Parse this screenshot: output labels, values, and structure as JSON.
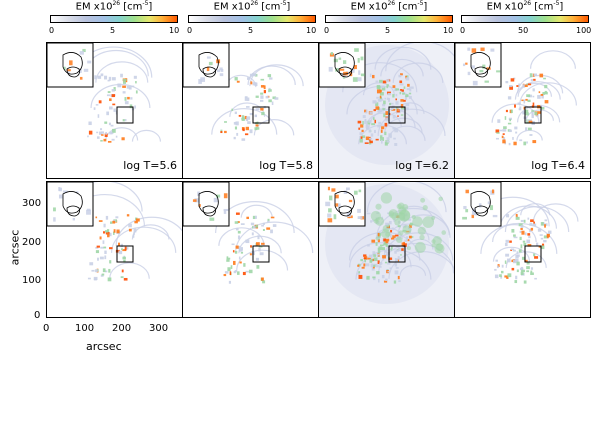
{
  "colorbars": [
    {
      "title_prefix": "EM x10",
      "title_exp": "26",
      "title_unit": " [cm",
      "title_unit_exp": "-5",
      "title_suffix": "]",
      "ticks": [
        "0",
        "5",
        "10"
      ]
    },
    {
      "title_prefix": "EM x10",
      "title_exp": "26",
      "title_unit": " [cm",
      "title_unit_exp": "-5",
      "title_suffix": "]",
      "ticks": [
        "0",
        "5",
        "10"
      ]
    },
    {
      "title_prefix": "EM x10",
      "title_exp": "26",
      "title_unit": " [cm",
      "title_unit_exp": "-5",
      "title_suffix": "]",
      "ticks": [
        "0",
        "5",
        "10"
      ]
    },
    {
      "title_prefix": "EM x10",
      "title_exp": "26",
      "title_unit": " [cm",
      "title_unit_exp": "-5",
      "title_suffix": "]",
      "ticks": [
        "0",
        "50",
        "100"
      ]
    }
  ],
  "panel_labels": [
    "log T=5.6",
    "log T=5.8",
    "log T=6.2",
    "log T=6.4"
  ],
  "y_axis": {
    "label": "arcsec",
    "ticks": [
      "300",
      "200",
      "100",
      "0"
    ]
  },
  "x_axis": {
    "label": "arcsec",
    "ticks": [
      "0",
      "100",
      "200",
      "300"
    ]
  },
  "colors": {
    "low": "#c9d0e6",
    "mid": "#9fd6a6",
    "high": "#ff7a1a",
    "peak": "#ff4d00"
  }
}
